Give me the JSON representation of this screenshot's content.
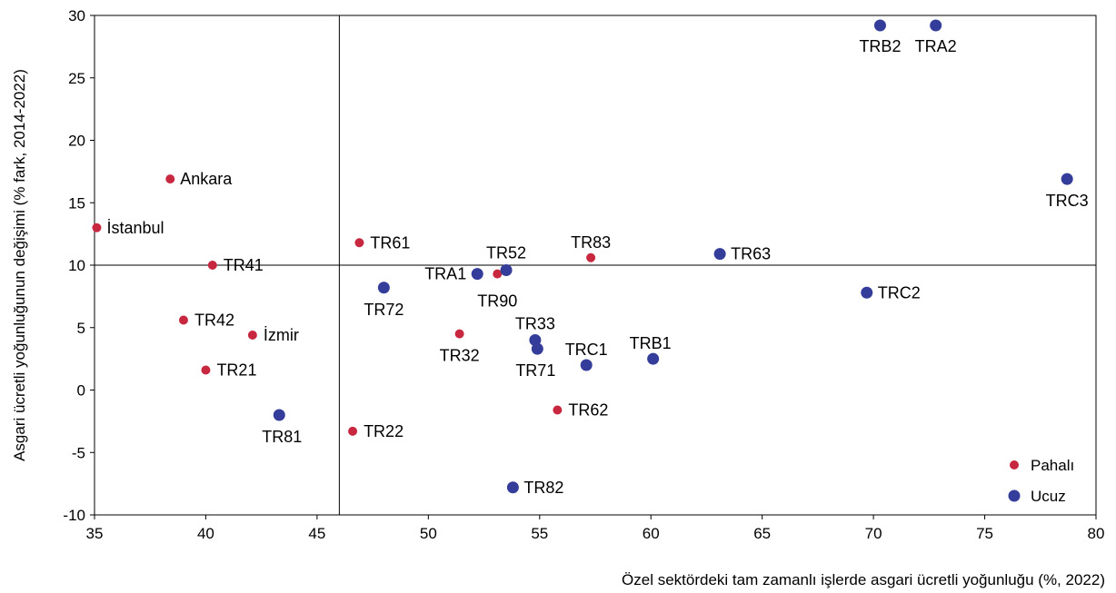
{
  "chart_data": {
    "type": "scatter",
    "xlabel": "Özel sektördeki tam zamanlı işlerde asgari ücretli yoğunluğu (%, 2022)",
    "ylabel": "Asgari ücretli yoğunluğunun değişimi (% fark, 2014-2022)",
    "xlim": [
      35,
      80
    ],
    "ylim": [
      -10,
      30
    ],
    "xticks": [
      35,
      40,
      45,
      50,
      55,
      60,
      65,
      70,
      75,
      80
    ],
    "yticks": [
      -10,
      -5,
      0,
      5,
      10,
      15,
      20,
      25,
      30
    ],
    "reference_lines": {
      "x": 46,
      "y": 10
    },
    "grid": false,
    "legend_position": "bottom-right",
    "series": [
      {
        "name": "Pahalı",
        "color": "#c8283f",
        "points": [
          {
            "label": "Ankara",
            "x": 38.4,
            "y": 16.9
          },
          {
            "label": "İstanbul",
            "x": 35.1,
            "y": 13.0
          },
          {
            "label": "TR41",
            "x": 40.3,
            "y": 10.0
          },
          {
            "label": "TR42",
            "x": 39.0,
            "y": 5.6
          },
          {
            "label": "İzmir",
            "x": 42.1,
            "y": 4.4
          },
          {
            "label": "TR21",
            "x": 40.0,
            "y": 1.6
          },
          {
            "label": "TR61",
            "x": 46.9,
            "y": 11.8
          },
          {
            "label": "TR22",
            "x": 46.6,
            "y": -3.3
          },
          {
            "label": "TR32",
            "x": 51.4,
            "y": 4.5
          },
          {
            "label": "TR90",
            "x": 53.1,
            "y": 9.3
          },
          {
            "label": "TR83",
            "x": 57.3,
            "y": 10.6
          },
          {
            "label": "TR62",
            "x": 55.8,
            "y": -1.6
          }
        ]
      },
      {
        "name": "Ucuz",
        "color": "#343d99",
        "points": [
          {
            "label": "TR81",
            "x": 43.3,
            "y": -2.0
          },
          {
            "label": "TR72",
            "x": 48.0,
            "y": 8.2
          },
          {
            "label": "TRA1",
            "x": 52.2,
            "y": 9.3
          },
          {
            "label": "TR52",
            "x": 53.5,
            "y": 9.6
          },
          {
            "label": "TR33",
            "x": 54.8,
            "y": 4.0
          },
          {
            "label": "TR71",
            "x": 54.9,
            "y": 3.3
          },
          {
            "label": "TRC1",
            "x": 57.1,
            "y": 2.0
          },
          {
            "label": "TRB1",
            "x": 60.1,
            "y": 2.5
          },
          {
            "label": "TR82",
            "x": 53.8,
            "y": -7.8
          },
          {
            "label": "TR63",
            "x": 63.1,
            "y": 10.9
          },
          {
            "label": "TRC2",
            "x": 69.7,
            "y": 7.8
          },
          {
            "label": "TRB2",
            "x": 70.3,
            "y": 29.2
          },
          {
            "label": "TRA2",
            "x": 72.8,
            "y": 29.2
          },
          {
            "label": "TRC3",
            "x": 78.7,
            "y": 16.9
          }
        ]
      }
    ]
  }
}
